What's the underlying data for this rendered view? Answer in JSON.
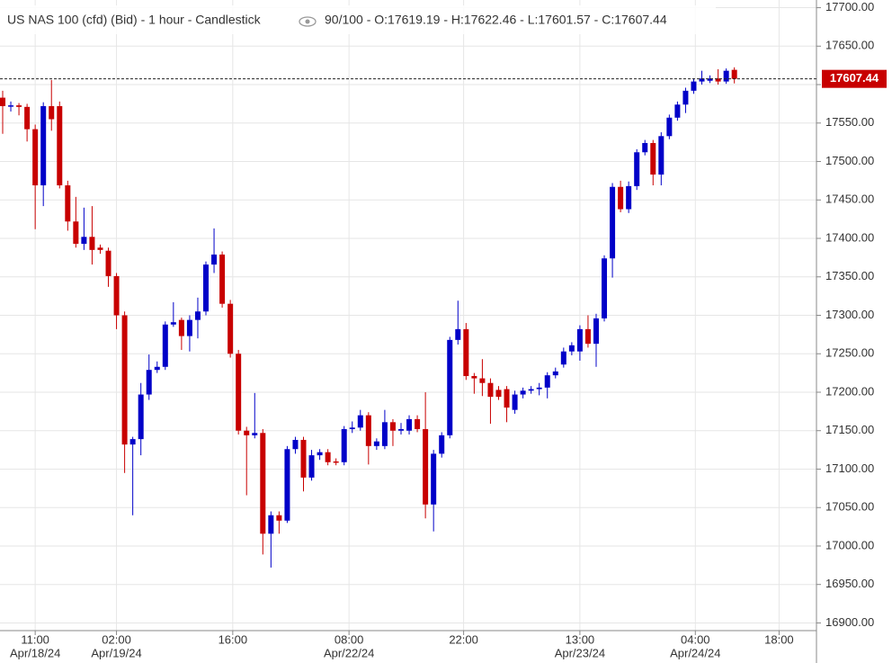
{
  "chart_data": {
    "type": "candlestick",
    "title": "US NAS 100 (cfd) (Bid) - 1 hour - Candlestick",
    "info": "90/100 - O:17619.19 - H:17622.46 - L:17601.57 - C:17607.44",
    "up_color": "#0000c8",
    "down_color": "#c80000",
    "open": [
      17583,
      17572,
      17573,
      17571,
      17542,
      17469,
      17572,
      17572,
      17469,
      17422,
      17393,
      17402,
      17388,
      17384,
      17351,
      17300,
      17132,
      17139,
      17197,
      17229,
      17233,
      17288,
      17294,
      17273,
      17294,
      17305,
      17366,
      17379,
      17315,
      17250,
      17150,
      17144,
      17147,
      17016,
      17040,
      17033,
      17126,
      17138,
      17089,
      17118,
      17122,
      17110,
      17109,
      17152,
      17154,
      17170,
      17130,
      17130,
      17161,
      17150,
      17150,
      17165,
      17152,
      17054,
      17120,
      17144,
      17268,
      17282,
      17221,
      17218,
      17212,
      17203,
      17204,
      17177,
      17197,
      17202,
      17204,
      17206,
      17222,
      17236,
      17253,
      17253,
      17282,
      17263,
      17296,
      17374,
      17467,
      17438,
      17468,
      17512,
      17524,
      17483,
      17533,
      17557,
      17574,
      17592,
      17604,
      17605,
      17608,
      17604,
      17619.19
    ],
    "high": [
      17592,
      17578,
      17576,
      17575,
      17548,
      17577,
      17606,
      17578,
      17475,
      17454,
      17440,
      17442,
      17392,
      17388,
      17355,
      17305,
      17142,
      17212,
      17249,
      17240,
      17292,
      17317,
      17297,
      17300,
      17323,
      17370,
      17413,
      17383,
      17320,
      17255,
      17155,
      17199,
      17152,
      17045,
      17045,
      17130,
      17142,
      17142,
      17125,
      17126,
      17126,
      17114,
      17156,
      17162,
      17177,
      17174,
      17140,
      17177,
      17165,
      17160,
      17170,
      17170,
      17200,
      17125,
      17148,
      17272,
      17319,
      17290,
      17225,
      17243,
      17218,
      17208,
      17208,
      17202,
      17206,
      17208,
      17212,
      17226,
      17232,
      17258,
      17265,
      17287,
      17300,
      17302,
      17378,
      17472,
      17475,
      17474,
      17516,
      17528,
      17528,
      17538,
      17561,
      17578,
      17596,
      17608,
      17618,
      17612,
      17620,
      17621,
      17622.46
    ],
    "low": [
      17536,
      17565,
      17560,
      17526,
      17412,
      17442,
      17540,
      17465,
      17410,
      17388,
      17385,
      17366,
      17380,
      17337,
      17282,
      17095,
      17040,
      17118,
      17190,
      17225,
      17229,
      17285,
      17255,
      17253,
      17270,
      17300,
      17355,
      17310,
      17245,
      17145,
      17066,
      17140,
      16989,
      16972,
      17016,
      17030,
      17120,
      17071,
      17085,
      17112,
      17105,
      17105,
      17105,
      17147,
      17150,
      17106,
      17125,
      17126,
      17130,
      17145,
      17145,
      17148,
      17036,
      17019,
      17115,
      17140,
      17262,
      17216,
      17198,
      17195,
      17159,
      17190,
      17161,
      17172,
      17192,
      17198,
      17196,
      17192,
      17218,
      17232,
      17248,
      17241,
      17258,
      17233,
      17292,
      17349,
      17434,
      17433,
      17463,
      17508,
      17469,
      17469,
      17529,
      17553,
      17563,
      17588,
      17600,
      17602,
      17600,
      17601,
      17601.57
    ],
    "close": [
      17572,
      17573,
      17571,
      17542,
      17469,
      17572,
      17555,
      17469,
      17422,
      17393,
      17402,
      17385,
      17385,
      17351,
      17300,
      17132,
      17139,
      17197,
      17229,
      17233,
      17288,
      17291,
      17273,
      17294,
      17305,
      17366,
      17379,
      17315,
      17250,
      17150,
      17144,
      17147,
      17016,
      17040,
      17033,
      17126,
      17138,
      17089,
      17118,
      17122,
      17109,
      17109,
      17152,
      17154,
      17170,
      17130,
      17136,
      17161,
      17150,
      17152,
      17165,
      17152,
      17054,
      17120,
      17144,
      17268,
      17282,
      17221,
      17218,
      17212,
      17194,
      17194,
      17180,
      17197,
      17202,
      17204,
      17206,
      17222,
      17227,
      17253,
      17261,
      17282,
      17263,
      17296,
      17374,
      17467,
      17438,
      17468,
      17512,
      17524,
      17483,
      17533,
      17557,
      17574,
      17592,
      17604,
      17608,
      17608,
      17604,
      17618,
      17607.44
    ],
    "last_price": 17607.44,
    "xlim": [
      -0.33,
      100.1
    ],
    "xticks": [
      {
        "value": 4,
        "label": "11:00"
      },
      {
        "value": 14,
        "label": "02:00"
      },
      {
        "value": 28.3,
        "label": "16:00"
      },
      {
        "value": 42.6,
        "label": "08:00"
      },
      {
        "value": 56.7,
        "label": "22:00"
      },
      {
        "value": 71,
        "label": "13:00"
      },
      {
        "value": 85.2,
        "label": "04:00"
      },
      {
        "value": 95.5,
        "label": "18:00"
      }
    ],
    "date_labels": [
      {
        "value": 4,
        "label": "Apr/18/24"
      },
      {
        "value": 14,
        "label": "Apr/19/24"
      },
      {
        "value": 42.6,
        "label": "Apr/22/24"
      },
      {
        "value": 71,
        "label": "Apr/23/24"
      },
      {
        "value": 85.2,
        "label": "Apr/24/24"
      }
    ],
    "ylim": [
      16890,
      17710
    ],
    "yticks": [
      {
        "value": 16900,
        "label": "16900.00"
      },
      {
        "value": 16950,
        "label": "16950.00"
      },
      {
        "value": 17000,
        "label": "17000.00"
      },
      {
        "value": 17050,
        "label": "17050.00"
      },
      {
        "value": 17100,
        "label": "17100.00"
      },
      {
        "value": 17150,
        "label": "17150.00"
      },
      {
        "value": 17200,
        "label": "17200.00"
      },
      {
        "value": 17250,
        "label": "17250.00"
      },
      {
        "value": 17300,
        "label": "17300.00"
      },
      {
        "value": 17350,
        "label": "17350.00"
      },
      {
        "value": 17400,
        "label": "17400.00"
      },
      {
        "value": 17450,
        "label": "17450.00"
      },
      {
        "value": 17500,
        "label": "17500.00"
      },
      {
        "value": 17550,
        "label": "17550.00"
      },
      {
        "value": 17600,
        "label": "17600.00"
      },
      {
        "value": 17650,
        "label": "17650.00"
      },
      {
        "value": 17700,
        "label": "17700.00"
      }
    ],
    "grid": true
  }
}
